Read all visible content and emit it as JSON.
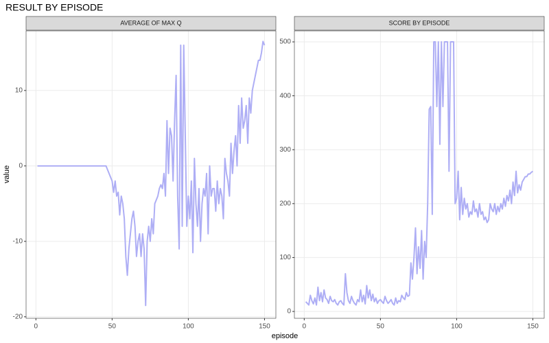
{
  "title": "RESULT BY EPISODE",
  "x_label": "episode",
  "y_label": "value",
  "chart_data": [
    {
      "type": "line",
      "title": "AVERAGE OF MAX Q",
      "x": [
        1,
        2,
        3,
        4,
        5,
        6,
        7,
        8,
        9,
        10,
        11,
        12,
        13,
        14,
        15,
        16,
        17,
        18,
        19,
        20,
        21,
        22,
        23,
        24,
        25,
        26,
        27,
        28,
        29,
        30,
        31,
        32,
        33,
        34,
        35,
        36,
        37,
        38,
        39,
        40,
        41,
        42,
        43,
        44,
        45,
        46,
        47,
        48,
        49,
        50,
        51,
        52,
        53,
        54,
        55,
        56,
        57,
        58,
        59,
        60,
        61,
        62,
        63,
        64,
        65,
        66,
        67,
        68,
        69,
        70,
        71,
        72,
        73,
        74,
        75,
        76,
        77,
        78,
        79,
        80,
        81,
        82,
        83,
        84,
        85,
        86,
        87,
        88,
        89,
        90,
        91,
        92,
        93,
        94,
        95,
        96,
        97,
        98,
        99,
        100,
        101,
        102,
        103,
        104,
        105,
        106,
        107,
        108,
        109,
        110,
        111,
        112,
        113,
        114,
        115,
        116,
        117,
        118,
        119,
        120,
        121,
        122,
        123,
        124,
        125,
        126,
        127,
        128,
        129,
        130,
        131,
        132,
        133,
        134,
        135,
        136,
        137,
        138,
        139,
        140,
        141,
        142,
        143,
        144,
        145,
        146,
        147,
        148,
        149,
        150
      ],
      "series": [
        {
          "color": "#aeaef5",
          "values": [
            0,
            0,
            0,
            0,
            0,
            0,
            0,
            0,
            0,
            0,
            0,
            0,
            0,
            0,
            0,
            0,
            0,
            0,
            0,
            0,
            0,
            0,
            0,
            0,
            0,
            0,
            0,
            0,
            0,
            0,
            0,
            0,
            0,
            0,
            0,
            0,
            0,
            0,
            0,
            0,
            0,
            0,
            0,
            0,
            0,
            0,
            -0.5,
            -1,
            -1.5,
            -2,
            -3.5,
            -2,
            -4,
            -3.5,
            -6.5,
            -4,
            -5,
            -7,
            -12,
            -14.5,
            -11,
            -9,
            -7,
            -6,
            -8,
            -12,
            -10,
            -9,
            -12,
            -9,
            -11,
            -18.5,
            -10,
            -8,
            -10,
            -7,
            -9,
            -5,
            -4.5,
            -4,
            -3,
            -2.5,
            -3,
            -1,
            -4,
            6,
            -1,
            5,
            4,
            -2,
            6,
            12,
            -4,
            -11,
            16,
            -8,
            16,
            4,
            -8,
            -4,
            -7,
            -2,
            -11.5,
            1,
            -5,
            -8,
            -3,
            -10,
            -5,
            -3,
            -4,
            -1,
            -9,
            0,
            -4,
            -3,
            -3,
            -6,
            -2,
            -5,
            -3,
            -4,
            -7,
            1,
            -1,
            -2,
            -4,
            3,
            -1,
            2,
            4,
            0,
            8,
            3,
            9,
            5,
            6,
            8,
            3,
            9,
            7,
            10,
            11,
            12,
            13,
            14,
            14,
            15,
            16.5,
            16
          ]
        }
      ],
      "xlim": [
        -6.45,
        157.45
      ],
      "ylim": [
        -20.2,
        17.9
      ],
      "xticks": [
        0,
        50,
        100,
        150
      ],
      "yticks": [
        -20,
        -10,
        0,
        10
      ],
      "grid": true
    },
    {
      "type": "line",
      "title": "SCORE BY EPISODE",
      "x": [
        1,
        2,
        3,
        4,
        5,
        6,
        7,
        8,
        9,
        10,
        11,
        12,
        13,
        14,
        15,
        16,
        17,
        18,
        19,
        20,
        21,
        22,
        23,
        24,
        25,
        26,
        27,
        28,
        29,
        30,
        31,
        32,
        33,
        34,
        35,
        36,
        37,
        38,
        39,
        40,
        41,
        42,
        43,
        44,
        45,
        46,
        47,
        48,
        49,
        50,
        51,
        52,
        53,
        54,
        55,
        56,
        57,
        58,
        59,
        60,
        61,
        62,
        63,
        64,
        65,
        66,
        67,
        68,
        69,
        70,
        71,
        72,
        73,
        74,
        75,
        76,
        77,
        78,
        79,
        80,
        81,
        82,
        83,
        84,
        85,
        86,
        87,
        88,
        89,
        90,
        91,
        92,
        93,
        94,
        95,
        96,
        97,
        98,
        99,
        100,
        101,
        102,
        103,
        104,
        105,
        106,
        107,
        108,
        109,
        110,
        111,
        112,
        113,
        114,
        115,
        116,
        117,
        118,
        119,
        120,
        121,
        122,
        123,
        124,
        125,
        126,
        127,
        128,
        129,
        130,
        131,
        132,
        133,
        134,
        135,
        136,
        137,
        138,
        139,
        140,
        141,
        142,
        143,
        144,
        145,
        146,
        147,
        148,
        149,
        150
      ],
      "series": [
        {
          "color": "#aeaef5",
          "values": [
            18,
            15,
            12,
            30,
            20,
            14,
            25,
            12,
            45,
            20,
            35,
            18,
            40,
            25,
            22,
            15,
            28,
            20,
            18,
            22,
            15,
            12,
            18,
            20,
            15,
            12,
            70,
            35,
            20,
            15,
            28,
            20,
            15,
            12,
            22,
            18,
            40,
            18,
            30,
            14,
            48,
            25,
            40,
            20,
            32,
            18,
            25,
            15,
            20,
            22,
            18,
            15,
            28,
            20,
            15,
            18,
            22,
            15,
            12,
            25,
            15,
            20,
            18,
            30,
            25,
            22,
            35,
            28,
            30,
            90,
            60,
            100,
            155,
            70,
            120,
            80,
            150,
            60,
            130,
            100,
            200,
            375,
            380,
            180,
            500,
            500,
            380,
            500,
            310,
            500,
            380,
            500,
            500,
            500,
            260,
            500,
            500,
            500,
            200,
            210,
            260,
            170,
            230,
            180,
            210,
            190,
            200,
            175,
            185,
            180,
            205,
            185,
            190,
            175,
            200,
            180,
            185,
            170,
            175,
            165,
            170,
            200,
            190,
            185,
            200,
            180,
            195,
            185,
            200,
            190,
            210,
            195,
            215,
            205,
            225,
            200,
            240,
            215,
            260,
            220,
            235,
            225,
            240,
            245,
            250,
            250,
            255,
            255,
            258,
            260
          ]
        }
      ],
      "xlim": [
        -6.45,
        157.45
      ],
      "ylim": [
        -12.7,
        520.4
      ],
      "xticks": [
        0,
        50,
        100,
        150
      ],
      "yticks": [
        0,
        100,
        200,
        300,
        400,
        500
      ],
      "grid": true
    }
  ]
}
